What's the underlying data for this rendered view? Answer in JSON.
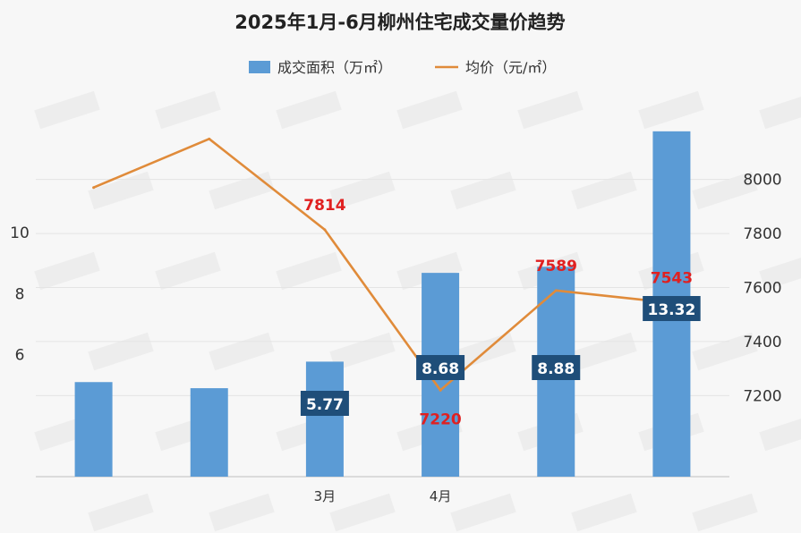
{
  "chart_data": {
    "type": "bar+line",
    "title": "2025年1月-6月柳州住宅成交量价趋势",
    "categories": [
      "",
      "",
      "3月",
      "4月",
      "",
      ""
    ],
    "series": [
      {
        "name": "成交面积（万㎡）",
        "type": "bar",
        "axis": "left",
        "color": "#5b9bd5",
        "values": [
          5.1,
          4.9,
          5.77,
          8.68,
          8.88,
          13.32
        ],
        "data_labels": [
          "",
          "",
          "5.77",
          "8.68",
          "8.88",
          "13.32"
        ]
      },
      {
        "name": "均价（元/㎡）",
        "type": "line",
        "axis": "right",
        "color": "#e08b3a",
        "values": [
          7970,
          8150,
          7814,
          7220,
          7589,
          7543
        ],
        "data_labels": [
          "",
          "",
          "7814",
          "7220",
          "7589",
          "7543"
        ]
      }
    ],
    "left_axis": {
      "ticks": [
        "6",
        "8",
        "10"
      ],
      "tick_values": [
        6,
        8,
        10
      ],
      "range": [
        2,
        14.4
      ]
    },
    "right_axis": {
      "ticks": [
        "7200",
        "7400",
        "7600",
        "7800",
        "8000"
      ],
      "tick_values": [
        7200,
        7400,
        7600,
        7800,
        8000
      ],
      "range": [
        6900,
        8300
      ]
    },
    "legend_position": "top",
    "grid": true,
    "bar_label_bg": "#1f4e79",
    "line_label_color": "#e02020"
  }
}
